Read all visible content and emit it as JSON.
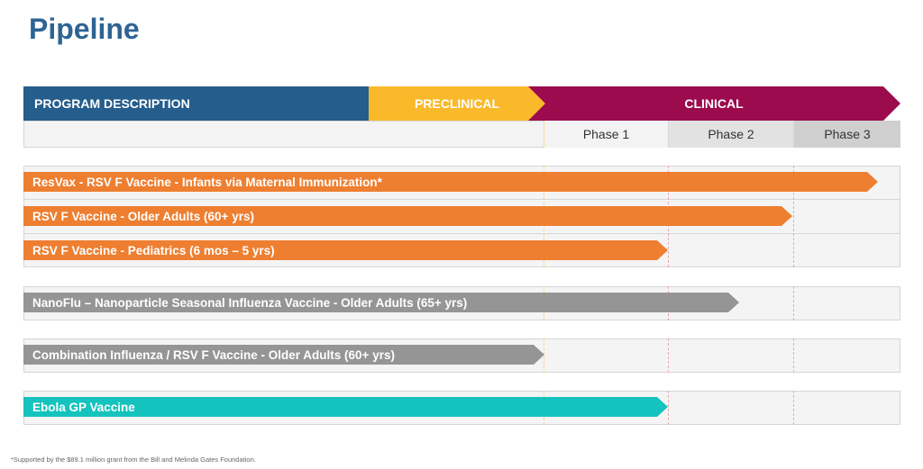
{
  "title": "Pipeline",
  "header": {
    "program": "PROGRAM DESCRIPTION",
    "preclinical": "PRECLINICAL",
    "clinical": "CLINICAL"
  },
  "phases": [
    "Phase 1",
    "Phase 2",
    "Phase 3"
  ],
  "programs": [
    {
      "label": "ResVax - RSV F Vaccine - Infants via Maternal Immunization*",
      "stage": "Phase 3",
      "progress": 1.0,
      "color": "#ee7f31"
    },
    {
      "label": "RSV F Vaccine - Older Adults (60+ yrs)",
      "stage": "Phase 2",
      "progress": 1.0,
      "color": "#ee7f31"
    },
    {
      "label": "RSV F Vaccine - Pediatrics (6 mos – 5 yrs)",
      "stage": "Phase 1",
      "progress": 1.0,
      "color": "#ee7f31"
    },
    {
      "label": "NanoFlu – Nanoparticle Seasonal Influenza Vaccine - Older Adults (65+ yrs)",
      "stage": "Phase 2",
      "progress": 0.57,
      "color": "#959595"
    },
    {
      "label": "Combination Influenza / RSV F Vaccine - Older Adults (60+ yrs)",
      "stage": "Preclinical",
      "progress": 1.0,
      "color": "#959595"
    },
    {
      "label": "Ebola GP Vaccine",
      "stage": "Phase 1",
      "progress": 1.0,
      "color": "#14c3bd"
    }
  ],
  "footnote": "*Supported by the $89.1 million grant from the Bill and Melinda Gates Foundation."
}
